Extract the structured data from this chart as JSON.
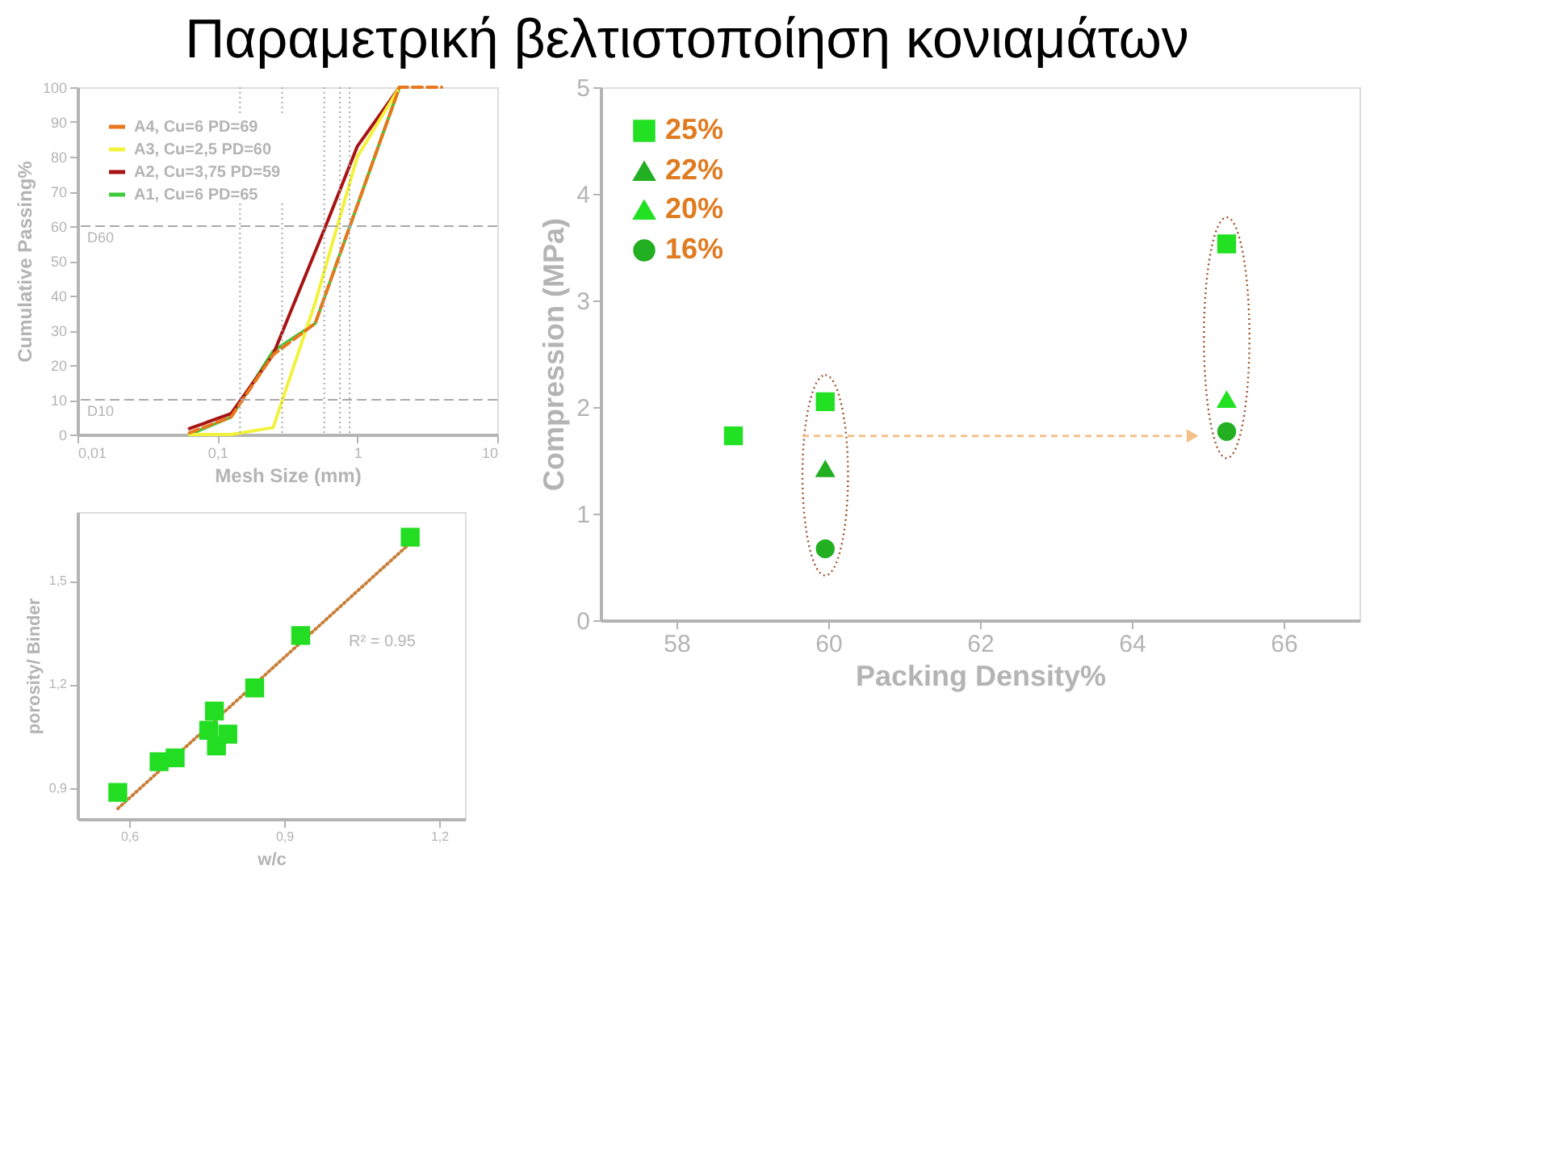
{
  "chart_data": [
    {
      "type": "line",
      "title": "Παραμετρική βελτιστοποίηση κονιαμάτων",
      "xlabel": "Mesh Size (mm)",
      "ylabel": "Cumulative Passing%",
      "log": "x",
      "xlim": [
        0.01,
        10
      ],
      "xticks": [
        {
          "value": 0.01,
          "label": "0,01"
        },
        {
          "value": 0.1,
          "label": "0,1"
        },
        1,
        10
      ],
      "ylim": [
        0,
        100
      ],
      "yticks": [
        0,
        10,
        20,
        30,
        40,
        50,
        60,
        70,
        80,
        90,
        100
      ],
      "grid": false,
      "legend": "top left",
      "series": [
        {
          "name": "A4,  Cu=6      PD=69",
          "color": "#e8771e",
          "line_style": "dashed",
          "x": [
            0.063,
            0.125,
            0.25,
            0.5,
            2,
            4
          ],
          "values": [
            0.5,
            5,
            23,
            32,
            100,
            100
          ]
        },
        {
          "name": "A3,  Cu=2,5    PD=60",
          "color": "#f2f23a",
          "line_style": "solid",
          "x": [
            0.063,
            0.125,
            0.25,
            0.5,
            1,
            2
          ],
          "values": [
            0,
            0,
            2,
            38,
            80,
            100
          ]
        },
        {
          "name": "A2,  Cu=3,75  PD=59",
          "color": "#a81414",
          "line_style": "solid",
          "x": [
            0.063,
            0.125,
            0.25,
            0.58,
            1,
            2
          ],
          "values": [
            1.7,
            6,
            23,
            59,
            83,
            100
          ]
        },
        {
          "name": "A1,  Cu=6      PD=65",
          "color": "#3ccc3c",
          "line_style": "solid",
          "x": [
            0.063,
            0.125,
            0.25,
            0.5,
            2
          ],
          "values": [
            0,
            5,
            24,
            32,
            100
          ]
        }
      ],
      "ref_lines": [
        {
          "axis": "y",
          "value": 60,
          "label": "D60",
          "color": "#aaaaaa",
          "line_style": "dashed"
        },
        {
          "axis": "y",
          "value": 10,
          "label": "D10",
          "color": "#aaaaaa",
          "line_style": "dashed"
        },
        {
          "axis": "x",
          "value": 0.145,
          "color": "#aaaaaa",
          "line_style": "dotted"
        },
        {
          "axis": "x",
          "value": 0.29,
          "color": "#aaaaaa",
          "line_style": "dotted"
        },
        {
          "axis": "x",
          "value": 0.58,
          "color": "#aaaaaa",
          "line_style": "dotted"
        },
        {
          "axis": "x",
          "value": 0.75,
          "color": "#aaaaaa",
          "line_style": "dotted"
        },
        {
          "axis": "x",
          "value": 0.88,
          "color": "#aaaaaa",
          "line_style": "dotted"
        }
      ]
    },
    {
      "type": "scatter",
      "xlabel": "w/c",
      "ylabel": "porosity/ Binder",
      "xlim": [
        0.5,
        1.25
      ],
      "xticks": [
        {
          "value": 0.6,
          "label": "0,6"
        },
        {
          "value": 0.9,
          "label": "0,9"
        },
        {
          "value": 1.2,
          "label": "1,2"
        }
      ],
      "ylim": [
        0.81,
        1.7
      ],
      "yticks": [
        {
          "value": 0.9,
          "label": "0,9"
        },
        {
          "value": 1.2,
          "label": "1,2"
        },
        {
          "value": 1.5,
          "label": "1,5"
        }
      ],
      "grid": false,
      "annotations": [
        "R² = 0.95"
      ],
      "series": [
        {
          "type": "scatter",
          "marker": "square",
          "color": "#22dd22",
          "x": [
            0.578,
            0.658,
            0.689,
            0.754,
            0.765,
            0.769,
            0.791,
            0.843,
            0.932,
            1.144
          ],
          "values": [
            0.887,
            0.976,
            0.987,
            1.067,
            1.123,
            1.022,
            1.056,
            1.19,
            1.342,
            1.627
          ]
        },
        {
          "type": "line",
          "line_style": "dotted",
          "color": "#c8803a",
          "x": [
            0.578,
            1.144
          ],
          "values": [
            0.84,
            1.61
          ]
        }
      ]
    },
    {
      "type": "scatter",
      "xlabel": "Packing Density%",
      "ylabel": "Compression (MPa)",
      "xlim": [
        57,
        67
      ],
      "xticks": [
        58,
        60,
        62,
        64,
        66
      ],
      "ylim": [
        0,
        5
      ],
      "yticks": [
        0,
        1,
        2,
        3,
        4,
        5
      ],
      "grid": false,
      "legend": "top left",
      "series": [
        {
          "name": "25%",
          "marker": "square",
          "color": "#22e022",
          "x": [
            58.75,
            59.96,
            65.25
          ],
          "values": [
            1.73,
            2.05,
            3.53
          ]
        },
        {
          "name": "22%",
          "marker": "triangle",
          "color": "#22b022",
          "x": [
            59.96
          ],
          "values": [
            1.42
          ]
        },
        {
          "name": "20%",
          "marker": "triangle",
          "color": "#22e022",
          "x": [
            65.25
          ],
          "values": [
            2.07
          ]
        },
        {
          "name": "16%",
          "marker": "circle",
          "color": "#22b022",
          "x": [
            59.96,
            65.25
          ],
          "values": [
            0.67,
            1.77
          ]
        }
      ]
    }
  ]
}
